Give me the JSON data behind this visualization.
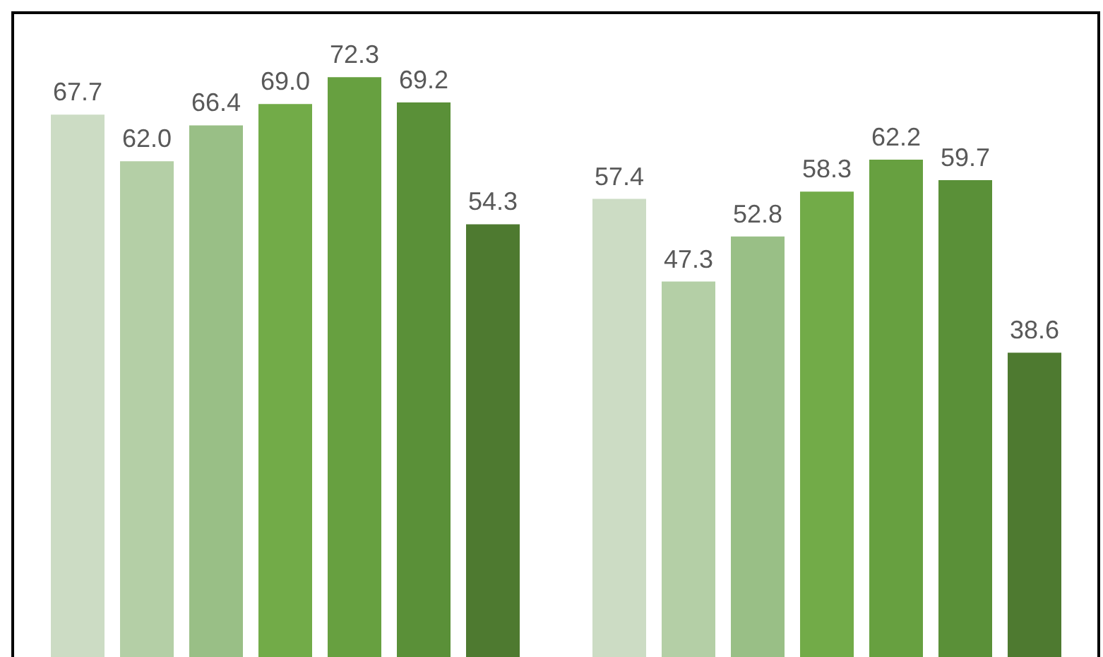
{
  "chart_data": {
    "type": "bar",
    "categories": [
      null,
      null
    ],
    "series": [
      {
        "color": "#ccdcc4",
        "values": [
          67.7,
          57.4
        ],
        "value_labels": [
          "67.7",
          "57.4"
        ]
      },
      {
        "color": "#b4cfa6",
        "values": [
          62.0,
          47.3
        ],
        "value_labels": [
          "62.0",
          "47.3"
        ]
      },
      {
        "color": "#99bf86",
        "values": [
          66.4,
          52.8
        ],
        "value_labels": [
          "66.4",
          "52.8"
        ]
      },
      {
        "color": "#72ab48",
        "values": [
          69.0,
          58.3
        ],
        "value_labels": [
          "69.0",
          "58.3"
        ]
      },
      {
        "color": "#67a040",
        "values": [
          72.3,
          62.2
        ],
        "value_labels": [
          "72.3",
          "62.2"
        ]
      },
      {
        "color": "#5a9038",
        "values": [
          69.2,
          59.7
        ],
        "value_labels": [
          "69.2",
          "59.7"
        ]
      },
      {
        "color": "#4e7a30",
        "values": [
          54.3,
          38.6
        ],
        "value_labels": [
          "54.3",
          "38.6"
        ]
      }
    ],
    "ylim": [
      0,
      80
    ]
  }
}
